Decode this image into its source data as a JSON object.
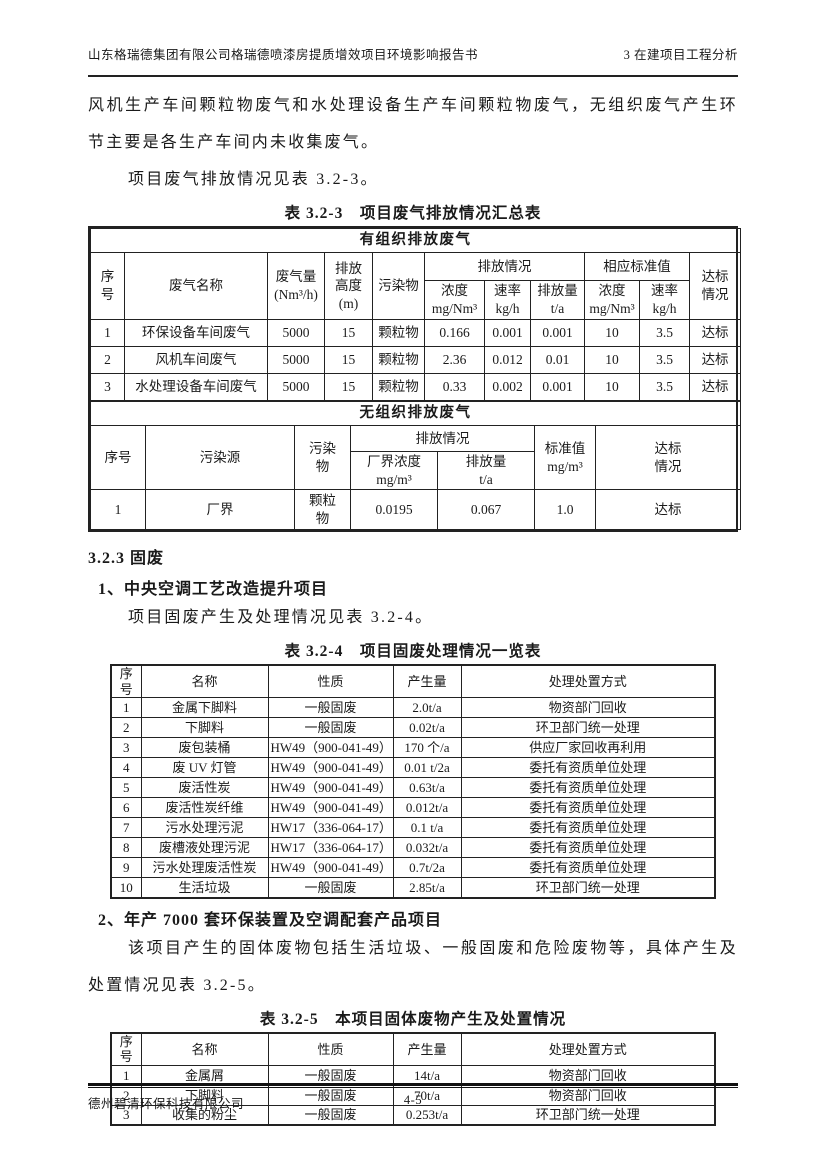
{
  "page": {
    "header_left": "山东格瑞德集团有限公司格瑞德喷漆房提质增效项目环境影响报告书",
    "header_right": "3  在建项目工程分析",
    "footer_company": "德州碧清环保科技有限公司",
    "page_number": "4-5"
  },
  "headings": {
    "solid_waste": "3.2.3 固废",
    "project1": "1、中央空调工艺改造提升项目",
    "project2": "2、年产 7000 套环保装置及空调配套产品项目"
  },
  "paragraphs": {
    "intro": "风机生产车间颗粒物废气和水处理设备生产车间颗粒物废气，无组织废气产生环节主要是各生产车间内未收集废气。",
    "see_table_323": "项目废气排放情况见表 3.2-3。",
    "see_table_324": "项目固废产生及处理情况见表 3.2-4。",
    "project2_desc": "该项目产生的固体废物包括生活垃圾、一般固废和危险废物等，具体产生及处置情况见表 3.2-5。"
  },
  "table_323": {
    "caption": "表 3.2-3　项目废气排放情况汇总表",
    "organized": {
      "banner": "有组织排放废气",
      "h": {
        "seq": "序\n号",
        "name": "废气名称",
        "volume": "废气量\n(Nm³/h)",
        "height": "排放\n高度\n(m)",
        "pollutant": "污染物",
        "emission_group": "排放情况",
        "standard_group": "相应标准值",
        "conc": "浓度\nmg/Nm³",
        "rate": "速率\nkg/h",
        "amount": "排放量\nt/a",
        "std_conc": "浓度\nmg/Nm³",
        "std_rate": "速率\nkg/h",
        "compliance": "达标\n情况"
      },
      "rows": [
        [
          "1",
          "环保设备车间废气",
          "5000",
          "15",
          "颗粒物",
          "0.166",
          "0.001",
          "0.001",
          "10",
          "3.5",
          "达标"
        ],
        [
          "2",
          "风机车间废气",
          "5000",
          "15",
          "颗粒物",
          "2.36",
          "0.012",
          "0.01",
          "10",
          "3.5",
          "达标"
        ],
        [
          "3",
          "水处理设备车间废气",
          "5000",
          "15",
          "颗粒物",
          "0.33",
          "0.002",
          "0.001",
          "10",
          "3.5",
          "达标"
        ]
      ]
    },
    "unorganized": {
      "banner": "无组织排放废气",
      "h": {
        "seq": "序号",
        "source": "污染源",
        "pollutant": "污染\n物",
        "emission_group": "排放情况",
        "boundary_conc": "厂界浓度\nmg/m³",
        "amount": "排放量\nt/a",
        "standard": "标准值\nmg/m³",
        "compliance": "达标\n情况"
      },
      "rows": [
        [
          "1",
          "厂界",
          "颗粒\n物",
          "0.0195",
          "0.067",
          "1.0",
          "达标"
        ]
      ]
    }
  },
  "table_324": {
    "caption": "表 3.2-4　项目固废处理情况一览表",
    "headers": [
      "序号",
      "名称",
      "性质",
      "产生量",
      "处理处置方式"
    ],
    "rows": [
      [
        "1",
        "金属下脚料",
        "一般固废",
        "2.0t/a",
        "物资部门回收"
      ],
      [
        "2",
        "下脚料",
        "一般固废",
        "0.02t/a",
        "环卫部门统一处理"
      ],
      [
        "3",
        "废包装桶",
        "HW49（900-041-49）",
        "170 个/a",
        "供应厂家回收再利用"
      ],
      [
        "4",
        "废 UV 灯管",
        "HW49（900-041-49）",
        "0.01 t/2a",
        "委托有资质单位处理"
      ],
      [
        "5",
        "废活性炭",
        "HW49（900-041-49）",
        "0.63t/a",
        "委托有资质单位处理"
      ],
      [
        "6",
        "废活性炭纤维",
        "HW49（900-041-49）",
        "0.012t/a",
        "委托有资质单位处理"
      ],
      [
        "7",
        "污水处理污泥",
        "HW17（336-064-17）",
        "0.1 t/a",
        "委托有资质单位处理"
      ],
      [
        "8",
        "废槽液处理污泥",
        "HW17（336-064-17）",
        "0.032t/a",
        "委托有资质单位处理"
      ],
      [
        "9",
        "污水处理废活性炭",
        "HW49（900-041-49）",
        "0.7t/2a",
        "委托有资质单位处理"
      ],
      [
        "10",
        "生活垃圾",
        "一般固废",
        "2.85t/a",
        "环卫部门统一处理"
      ]
    ]
  },
  "table_325": {
    "caption": "表 3.2-5　本项目固体废物产生及处置情况",
    "headers": [
      "序号",
      "名称",
      "性质",
      "产生量",
      "处理处置方式"
    ],
    "rows": [
      [
        "1",
        "金属屑",
        "一般固废",
        "14t/a",
        "物资部门回收"
      ],
      [
        "2",
        "下脚料",
        "一般固废",
        "70t/a",
        "物资部门回收"
      ],
      [
        "3",
        "收集的粉尘",
        "一般固废",
        "0.253t/a",
        "环卫部门统一处理"
      ]
    ]
  }
}
